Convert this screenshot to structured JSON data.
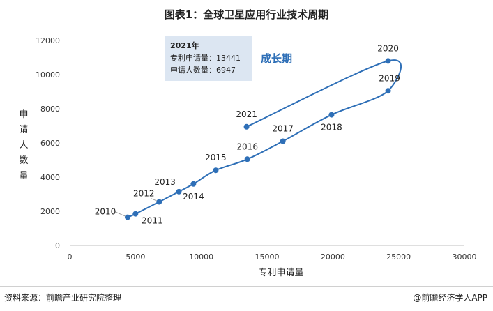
{
  "title": "图表1：全球卫星应用行业技术周期",
  "chart_data": {
    "type": "scatter",
    "xlabel": "专利申请量",
    "ylabel": "申请人数量",
    "xlim": [
      0,
      30000
    ],
    "ylim": [
      0,
      12000
    ],
    "xticks": [
      0,
      5000,
      10000,
      15000,
      20000,
      25000,
      30000
    ],
    "yticks": [
      0,
      2000,
      4000,
      6000,
      8000,
      10000,
      12000
    ],
    "grid": false,
    "smooth_line": true,
    "series_color": "#2e6fb7",
    "points": [
      {
        "label": "2010",
        "x": 4400,
        "y": 1650
      },
      {
        "label": "2011",
        "x": 5000,
        "y": 1850
      },
      {
        "label": "2012",
        "x": 6800,
        "y": 2550
      },
      {
        "label": "2013",
        "x": 8300,
        "y": 3150
      },
      {
        "label": "2014",
        "x": 9400,
        "y": 3600
      },
      {
        "label": "2015",
        "x": 11100,
        "y": 4400
      },
      {
        "label": "2016",
        "x": 13500,
        "y": 5050
      },
      {
        "label": "2017",
        "x": 16200,
        "y": 6100
      },
      {
        "label": "2018",
        "x": 19900,
        "y": 7650
      },
      {
        "label": "2019",
        "x": 24200,
        "y": 9050
      },
      {
        "label": "2020",
        "x": 24200,
        "y": 10800
      },
      {
        "label": "2021",
        "x": 13441,
        "y": 6947
      }
    ],
    "annotation": {
      "title": "2021年",
      "lines": [
        "专利申请量：13441",
        "申请人数量：6947"
      ],
      "background": "#dce6f2"
    },
    "phase_label": "成长期"
  },
  "footer": {
    "source": "资料来源：前瞻产业研究院整理",
    "brand": "@前瞻经济学人APP"
  }
}
